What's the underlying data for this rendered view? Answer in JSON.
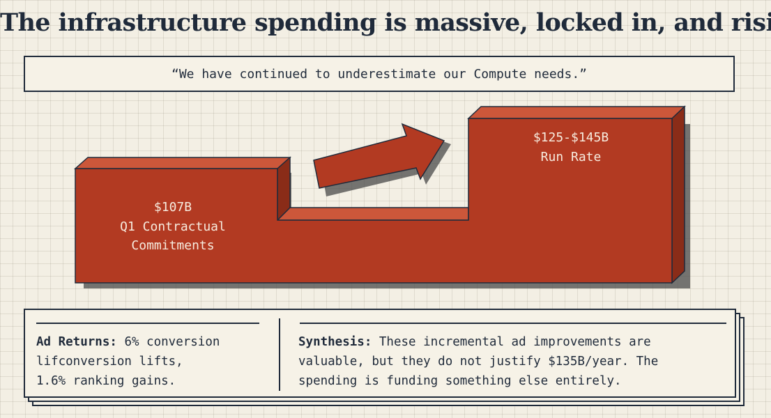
{
  "title": "The infrastructure spending is massive, locked in, and rising",
  "quote": "“We have continued to underestimate our Compute needs.”",
  "diagram": {
    "left_block": {
      "value": "$107B",
      "label_line1": "Q1 Contractual",
      "label_line2": "Commitments"
    },
    "right_block": {
      "value": "$125-$145B",
      "label_line1": "Run Rate"
    },
    "colors": {
      "front": "#b23a22",
      "top": "#cc573a",
      "side": "#8a2c18",
      "shadow": "#4a4a4a",
      "outline": "#1f2a3a"
    }
  },
  "bottom": {
    "left": {
      "heading": "Ad Returns:",
      "line1_rest": " 6% conversion",
      "line2": "lifconversion lifts,",
      "line3": "1.6% ranking gains."
    },
    "right": {
      "heading": "Synthesis:",
      "line1_rest": " These incremental ad improvements are",
      "line2": "valuable, but they do not justify $135B/year. The",
      "line3": "spending is funding something else entirely."
    }
  }
}
